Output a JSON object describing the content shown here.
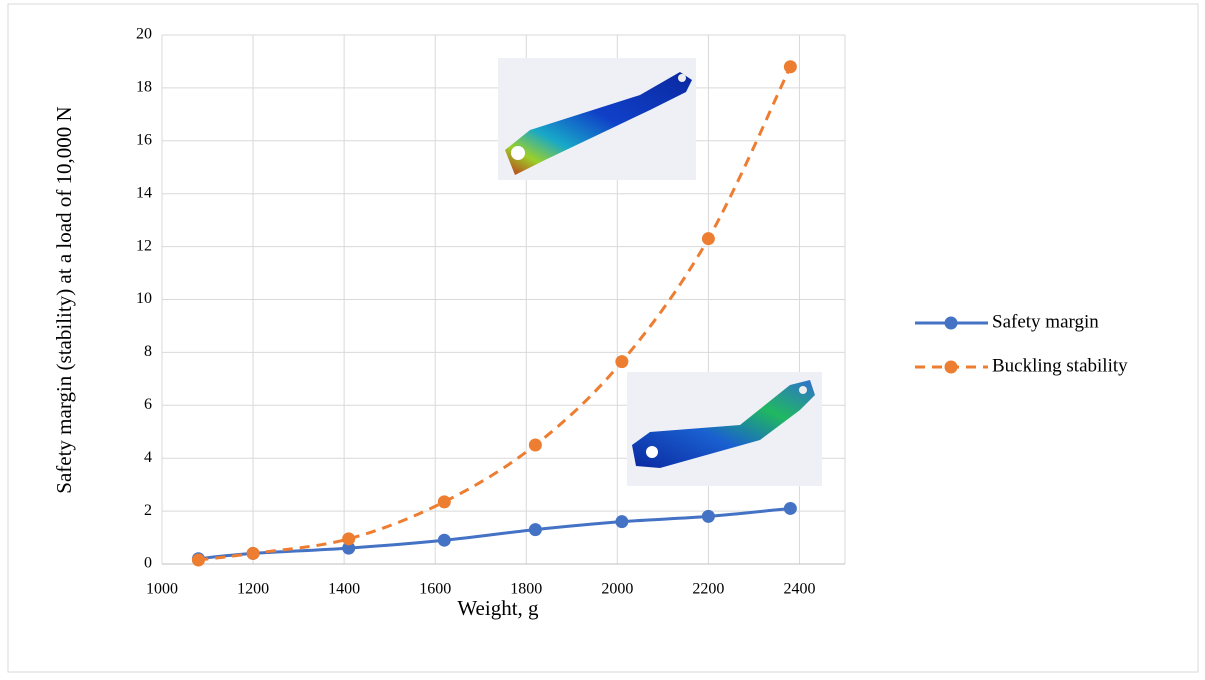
{
  "chart_data": {
    "type": "line",
    "x_label": "Weight, g",
    "y_label": "Safety margin (stability) at a load of 10,000 N",
    "x": [
      1080,
      1200,
      1410,
      1620,
      1820,
      2010,
      2200,
      2380
    ],
    "series": [
      {
        "name": "Safety margin",
        "color": "#4472c4",
        "dash": false,
        "values": [
          0.2,
          0.4,
          0.6,
          0.9,
          1.3,
          1.6,
          1.8,
          2.1
        ]
      },
      {
        "name": "Buckling stability",
        "color": "#ed7d31",
        "dash": true,
        "values": [
          0.15,
          0.4,
          0.95,
          2.35,
          4.5,
          7.65,
          12.3,
          18.8
        ]
      }
    ],
    "xlim": [
      1000,
      2500
    ],
    "xticks": [
      1000,
      1200,
      1400,
      1600,
      1800,
      2000,
      2200,
      2400
    ],
    "ylim": [
      0,
      20
    ],
    "yticks": [
      0,
      2,
      4,
      6,
      8,
      10,
      12,
      14,
      16,
      18,
      20
    ],
    "grid": true,
    "legend": "right"
  }
}
